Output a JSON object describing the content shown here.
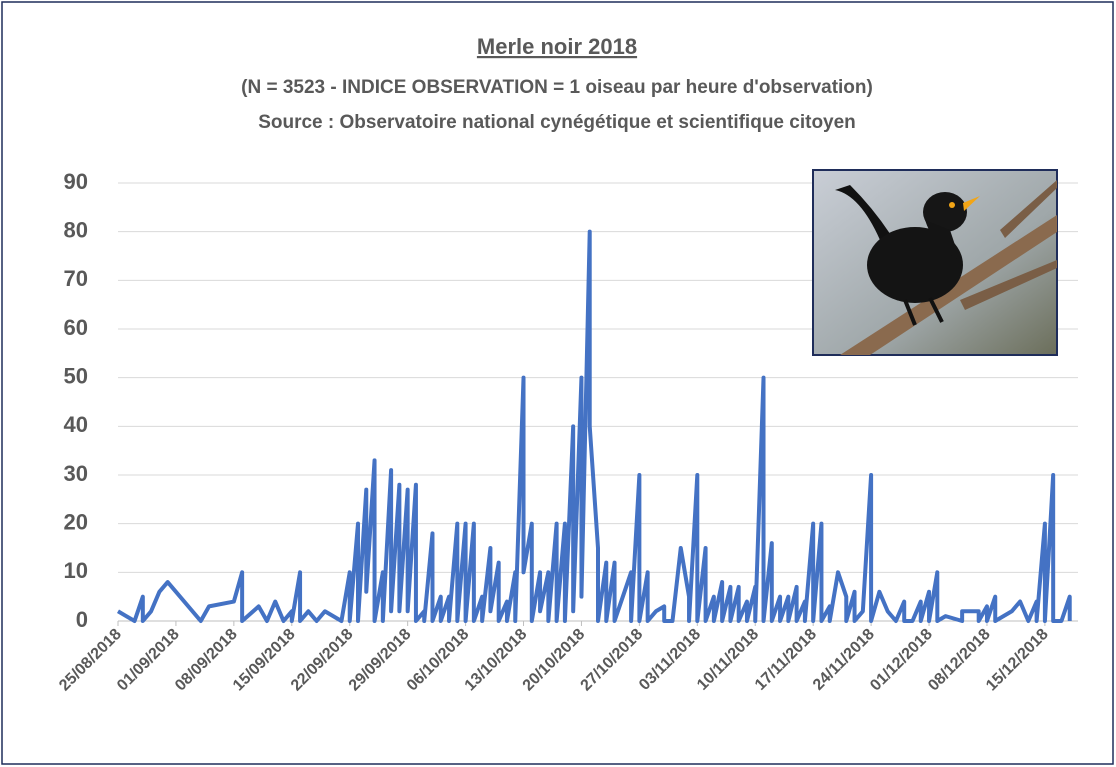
{
  "chart_data": {
    "type": "line",
    "title": "Merle noir 2018",
    "subtitle": [
      "(N = 3523 - INDICE OBSERVATION = 1 oiseau par heure d'observation)",
      "Source : Observatoire national cynégétique et scientifique citoyen"
    ],
    "color": "#4472c4",
    "grid": true,
    "ylim": [
      0,
      90
    ],
    "yticks": [
      0,
      10,
      20,
      30,
      40,
      50,
      60,
      70,
      80,
      90
    ],
    "xlim": [
      "25/08/2018",
      "19/12/2018"
    ],
    "xticks": [
      "25/08/2018",
      "01/09/2018",
      "08/09/2018",
      "15/09/2018",
      "22/09/2018",
      "29/09/2018",
      "06/10/2018",
      "13/10/2018",
      "20/10/2018",
      "27/10/2018",
      "03/11/2018",
      "10/11/2018",
      "17/11/2018",
      "24/11/2018",
      "01/12/2018",
      "08/12/2018",
      "15/12/2018"
    ],
    "x": [
      "25/08/2018",
      "27/08/2018",
      "28/08/2018",
      "28/08/2018",
      "29/08/2018",
      "30/08/2018",
      "31/08/2018",
      "04/09/2018",
      "05/09/2018",
      "08/09/2018",
      "09/09/2018",
      "09/09/2018",
      "11/09/2018",
      "12/09/2018",
      "13/09/2018",
      "14/09/2018",
      "15/09/2018",
      "15/09/2018",
      "16/09/2018",
      "16/09/2018",
      "17/09/2018",
      "18/09/2018",
      "19/09/2018",
      "21/09/2018",
      "22/09/2018",
      "22/09/2018",
      "23/09/2018",
      "23/09/2018",
      "24/09/2018",
      "24/09/2018",
      "25/09/2018",
      "25/09/2018",
      "26/09/2018",
      "26/09/2018",
      "27/09/2018",
      "27/09/2018",
      "28/09/2018",
      "28/09/2018",
      "29/09/2018",
      "29/09/2018",
      "30/09/2018",
      "30/09/2018",
      "01/10/2018",
      "01/10/2018",
      "02/10/2018",
      "02/10/2018",
      "03/10/2018",
      "03/10/2018",
      "04/10/2018",
      "04/10/2018",
      "05/10/2018",
      "05/10/2018",
      "06/10/2018",
      "06/10/2018",
      "07/10/2018",
      "07/10/2018",
      "08/10/2018",
      "08/10/2018",
      "09/10/2018",
      "09/10/2018",
      "10/10/2018",
      "10/10/2018",
      "11/10/2018",
      "11/10/2018",
      "12/10/2018",
      "12/10/2018",
      "13/10/2018",
      "13/10/2018",
      "14/10/2018",
      "14/10/2018",
      "15/10/2018",
      "15/10/2018",
      "16/10/2018",
      "16/10/2018",
      "17/10/2018",
      "17/10/2018",
      "18/10/2018",
      "18/10/2018",
      "19/10/2018",
      "19/10/2018",
      "20/10/2018",
      "20/10/2018",
      "21/10/2018",
      "21/10/2018",
      "22/10/2018",
      "22/10/2018",
      "23/10/2018",
      "23/10/2018",
      "24/10/2018",
      "24/10/2018",
      "25/10/2018",
      "26/10/2018",
      "26/10/2018",
      "27/10/2018",
      "27/10/2018",
      "28/10/2018",
      "28/10/2018",
      "29/10/2018",
      "30/10/2018",
      "30/10/2018",
      "31/10/2018",
      "01/11/2018",
      "02/11/2018",
      "02/11/2018",
      "03/11/2018",
      "03/11/2018",
      "04/11/2018",
      "04/11/2018",
      "05/11/2018",
      "05/11/2018",
      "06/11/2018",
      "06/11/2018",
      "07/11/2018",
      "07/11/2018",
      "08/11/2018",
      "08/11/2018",
      "09/11/2018",
      "09/11/2018",
      "10/11/2018",
      "10/11/2018",
      "11/11/2018",
      "11/11/2018",
      "12/11/2018",
      "12/11/2018",
      "13/11/2018",
      "13/11/2018",
      "14/11/2018",
      "14/11/2018",
      "15/11/2018",
      "15/11/2018",
      "16/11/2018",
      "16/11/2018",
      "17/11/2018",
      "17/11/2018",
      "18/11/2018",
      "18/11/2018",
      "19/11/2018",
      "19/11/2018",
      "20/11/2018",
      "21/11/2018",
      "21/11/2018",
      "22/11/2018",
      "22/11/2018",
      "23/11/2018",
      "24/11/2018",
      "24/11/2018",
      "25/11/2018",
      "26/11/2018",
      "27/11/2018",
      "28/11/2018",
      "28/11/2018",
      "29/11/2018",
      "30/11/2018",
      "30/11/2018",
      "01/12/2018",
      "01/12/2018",
      "02/12/2018",
      "02/12/2018",
      "03/12/2018",
      "05/12/2018",
      "05/12/2018",
      "06/12/2018",
      "07/12/2018",
      "07/12/2018",
      "08/12/2018",
      "08/12/2018",
      "09/12/2018",
      "09/12/2018",
      "11/12/2018",
      "12/12/2018",
      "13/12/2018",
      "14/12/2018",
      "14/12/2018",
      "15/12/2018",
      "15/12/2018",
      "16/12/2018",
      "16/12/2018",
      "17/12/2018",
      "18/12/2018",
      "18/12/2018"
    ],
    "values": [
      2,
      0,
      5,
      0,
      2,
      6,
      8,
      0,
      3,
      4,
      10,
      0,
      3,
      0,
      4,
      0,
      2,
      0,
      10,
      0,
      2,
      0,
      2,
      0,
      10,
      0,
      20,
      0,
      27,
      6,
      33,
      0,
      10,
      0,
      31,
      2,
      28,
      2,
      27,
      2,
      28,
      0,
      2,
      0,
      18,
      0,
      5,
      0,
      5,
      0,
      20,
      0,
      20,
      0,
      20,
      0,
      5,
      0,
      15,
      2,
      12,
      0,
      4,
      0,
      10,
      0,
      50,
      10,
      20,
      0,
      10,
      2,
      10,
      0,
      20,
      0,
      20,
      0,
      40,
      2,
      50,
      5,
      80,
      40,
      15,
      0,
      12,
      0,
      12,
      0,
      5,
      10,
      0,
      30,
      0,
      10,
      0,
      2,
      3,
      0,
      0,
      15,
      5,
      0,
      30,
      0,
      15,
      0,
      5,
      0,
      8,
      0,
      7,
      0,
      7,
      0,
      4,
      0,
      7,
      0,
      50,
      0,
      16,
      0,
      5,
      0,
      5,
      0,
      7,
      0,
      4,
      0,
      20,
      0,
      20,
      0,
      3,
      0,
      10,
      5,
      0,
      6,
      0,
      2,
      30,
      0,
      6,
      2,
      0,
      4,
      0,
      0,
      4,
      0,
      6,
      0,
      10,
      0,
      1,
      0,
      2,
      2,
      2,
      0,
      3,
      0,
      5,
      0,
      2,
      4,
      0,
      4,
      0,
      20,
      0,
      30,
      0,
      0,
      5,
      0
    ]
  }
}
